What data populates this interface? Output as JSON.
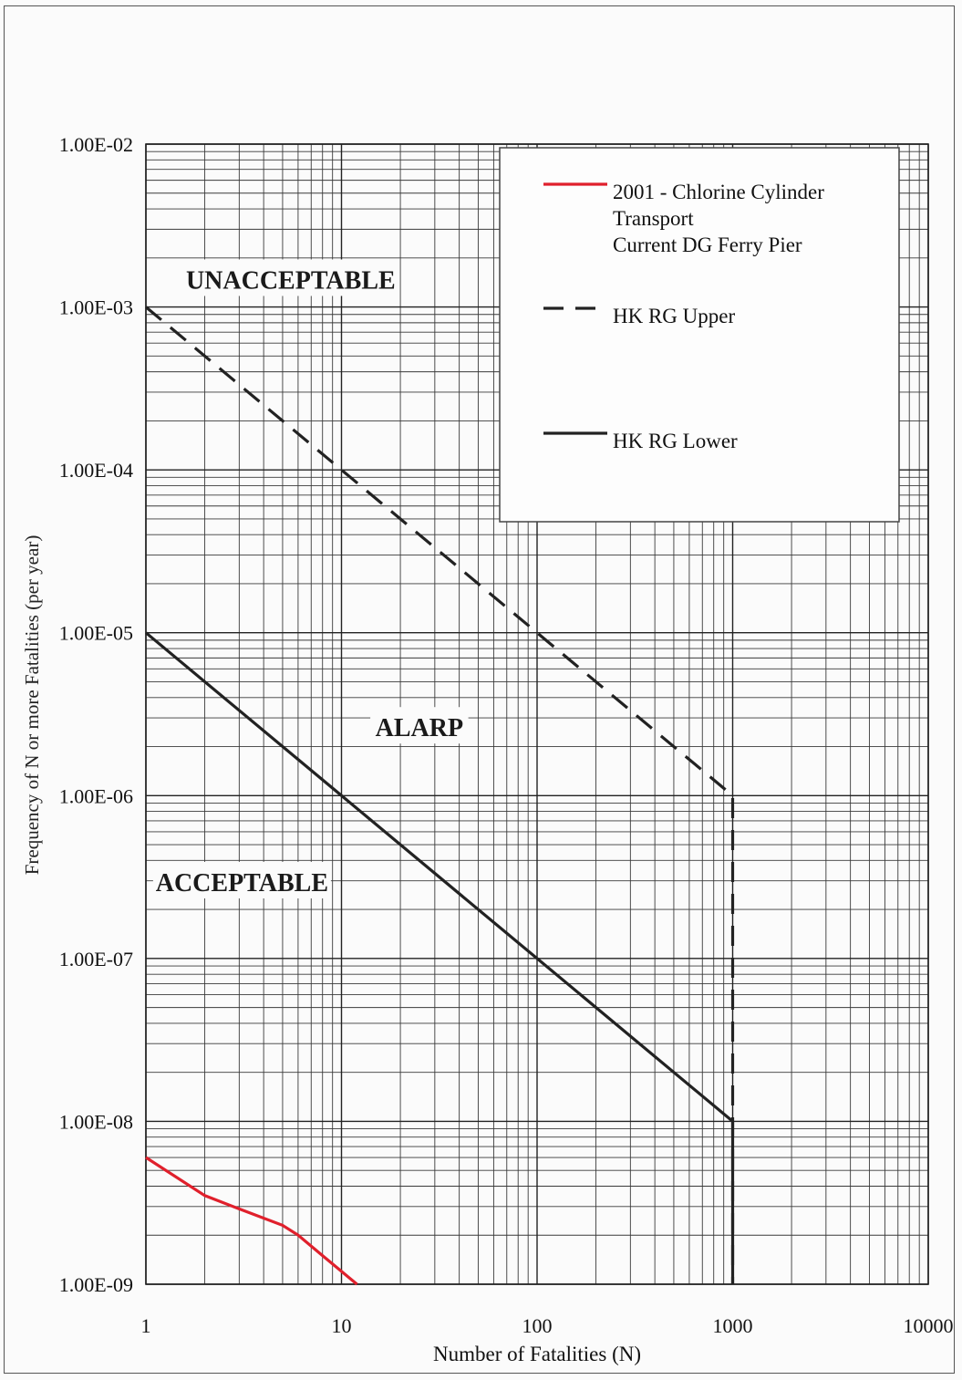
{
  "chart_data": {
    "type": "line",
    "title": "",
    "xlabel": "Number of Fatalities (N)",
    "ylabel": "Frequency of N or more Fatalities (per year)",
    "x_scale": "log",
    "y_scale": "log",
    "xlim": [
      1,
      10000
    ],
    "ylim": [
      1e-09,
      0.01
    ],
    "x_ticks": [
      {
        "value": 1,
        "label": "1"
      },
      {
        "value": 10,
        "label": "10"
      },
      {
        "value": 100,
        "label": "100"
      },
      {
        "value": 1000,
        "label": "1000"
      },
      {
        "value": 10000,
        "label": "10000"
      }
    ],
    "y_ticks": [
      {
        "value": 0.01,
        "label": "1.00E-02"
      },
      {
        "value": 0.001,
        "label": "1.00E-03"
      },
      {
        "value": 0.0001,
        "label": "1.00E-04"
      },
      {
        "value": 1e-05,
        "label": "1.00E-05"
      },
      {
        "value": 1e-06,
        "label": "1.00E-06"
      },
      {
        "value": 1e-07,
        "label": "1.00E-07"
      },
      {
        "value": 1e-08,
        "label": "1.00E-08"
      },
      {
        "value": 1e-09,
        "label": "1.00E-09"
      }
    ],
    "grid": true,
    "legend_position": "top-right",
    "series": [
      {
        "name": "2001 - Chlorine  Cylinder Transport Current DG Ferry Pier",
        "legend_lines": [
          "2001 - Chlorine  Cylinder",
          "Transport",
          "Current DG Ferry Pier"
        ],
        "color": "#e0202c",
        "dash": "solid",
        "x": [
          1,
          2,
          3,
          5,
          6,
          8,
          12
        ],
        "y": [
          6e-09,
          3.5e-09,
          2.9e-09,
          2.3e-09,
          2e-09,
          1.5e-09,
          1e-09
        ]
      },
      {
        "name": "HK RG Upper",
        "legend_lines": [
          "HK RG Upper"
        ],
        "color": "#222222",
        "dash": "dashed",
        "x": [
          1,
          1000,
          1000
        ],
        "y": [
          0.001,
          1e-06,
          1e-09
        ]
      },
      {
        "name": "HK RG Lower",
        "legend_lines": [
          "HK RG Lower"
        ],
        "color": "#222222",
        "dash": "solid",
        "x": [
          1,
          1000,
          1000
        ],
        "y": [
          1e-05,
          1e-08,
          1e-09
        ]
      }
    ],
    "annotations": [
      {
        "text": "UNACCEPTABLE",
        "x": 5.5,
        "y": 0.0014
      },
      {
        "text": "ALARP",
        "x": 25,
        "y": 2.5e-06
      },
      {
        "text": "ACCEPTABLE",
        "x": 3.1,
        "y": 2.8e-07
      }
    ]
  }
}
